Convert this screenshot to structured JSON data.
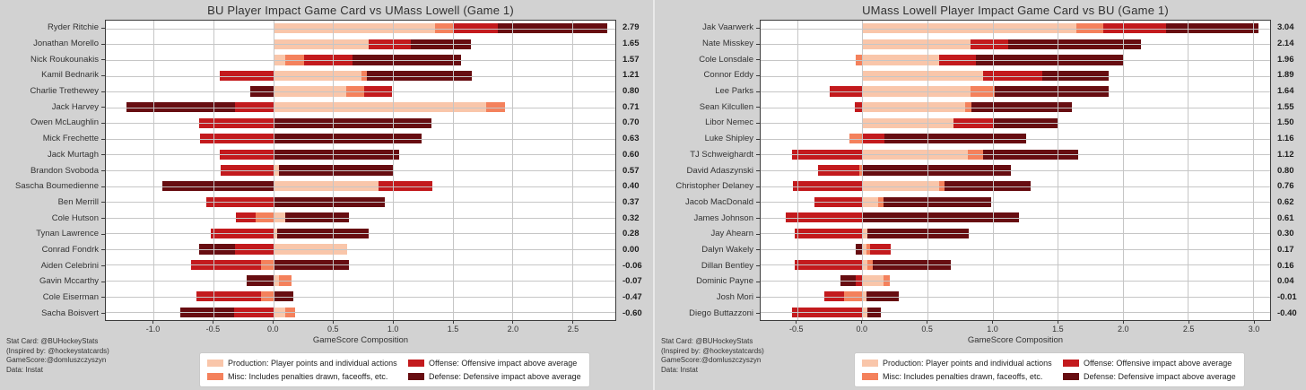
{
  "colors": {
    "background": "#d2d2d2",
    "plot_background": "#ffffff",
    "grid": "#c6c6c6",
    "spine": "#3b3b3b",
    "text": "#2f2f2f",
    "production": "#f9c6aa",
    "misc": "#f4815c",
    "offense": "#c31a1d",
    "defense": "#670d11"
  },
  "legend": {
    "items": [
      {
        "key": "production",
        "label": "Production: Player points and individual actions"
      },
      {
        "key": "misc",
        "label": "Misc: Includes penalties drawn, faceoffs, etc."
      },
      {
        "key": "offense",
        "label": "Offense: Offensive impact above average"
      },
      {
        "key": "defense",
        "label": "Defense: Defensive impact above average"
      }
    ]
  },
  "credits": [
    "Stat Card: @BUHockeyStats",
    "(Inspired by: @hockeystatcards)",
    "GameScore:@domluszczyszyn",
    "Data: Instat"
  ],
  "chart_data": [
    {
      "type": "bar",
      "orientation": "horizontal-stacked",
      "title": "BU Player Impact Game Card vs UMass Lowell (Game 1)",
      "xlabel": "GameScore Composition",
      "xlim": [
        -1.4,
        2.86
      ],
      "xticks": [
        "-1.0",
        "-0.5",
        "0.0",
        "0.5",
        "1.0",
        "1.5",
        "2.0",
        "2.5"
      ],
      "segment_order": [
        "production",
        "misc",
        "offense",
        "defense"
      ],
      "grid": true,
      "players": [
        {
          "name": "Ryder Ritchie",
          "total": "2.79",
          "production": 1.35,
          "misc": 0.15,
          "offense": 0.38,
          "defense": 0.91
        },
        {
          "name": "Jonathan Morello",
          "total": "1.65",
          "production": 0.8,
          "misc": 0.0,
          "offense": 0.35,
          "defense": 0.5
        },
        {
          "name": "Nick Roukounakis",
          "total": "1.57",
          "production": 0.1,
          "misc": 0.16,
          "offense": 0.4,
          "defense": 0.91
        },
        {
          "name": "Kamil Bednarik",
          "total": "1.21",
          "production": 0.74,
          "misc": 0.04,
          "offense": -0.45,
          "defense": 0.88
        },
        {
          "name": "Charlie Trethewey",
          "total": "0.80",
          "production": 0.61,
          "misc": 0.15,
          "offense": 0.23,
          "defense": -0.19
        },
        {
          "name": "Jack Harvey",
          "total": "0.71",
          "production": 1.78,
          "misc": 0.16,
          "offense": -0.32,
          "defense": -0.91
        },
        {
          "name": "Owen McLaughlin",
          "total": "0.70",
          "production": 0.0,
          "misc": 0.0,
          "offense": -0.62,
          "defense": 1.32
        },
        {
          "name": "Mick Frechette",
          "total": "0.63",
          "production": 0.0,
          "misc": 0.0,
          "offense": -0.61,
          "defense": 1.24
        },
        {
          "name": "Jack Murtagh",
          "total": "0.60",
          "production": 0.0,
          "misc": 0.0,
          "offense": -0.45,
          "defense": 1.05
        },
        {
          "name": "Brandon Svoboda",
          "total": "0.57",
          "production": 0.05,
          "misc": 0.0,
          "offense": -0.44,
          "defense": 0.96
        },
        {
          "name": "Sascha Boumedienne",
          "total": "0.40",
          "production": 0.88,
          "misc": 0.0,
          "offense": 0.45,
          "defense": -0.93
        },
        {
          "name": "Ben Merrill",
          "total": "0.37",
          "production": 0.0,
          "misc": 0.0,
          "offense": -0.56,
          "defense": 0.93
        },
        {
          "name": "Cole Hutson",
          "total": "0.32",
          "production": 0.1,
          "misc": -0.15,
          "offense": -0.16,
          "defense": 0.53
        },
        {
          "name": "Tynan Lawrence",
          "total": "0.28",
          "production": 0.03,
          "misc": 0.0,
          "offense": -0.52,
          "defense": 0.77
        },
        {
          "name": "Conrad Fondrk",
          "total": "0.00",
          "production": 0.62,
          "misc": 0.0,
          "offense": -0.32,
          "defense": -0.3
        },
        {
          "name": "Aiden Celebrini",
          "total": "-0.06",
          "production": 0.0,
          "misc": -0.1,
          "offense": -0.59,
          "defense": 0.63
        },
        {
          "name": "Gavin Mccarthy",
          "total": "-0.07",
          "production": 0.05,
          "misc": 0.1,
          "offense": 0.0,
          "defense": -0.22
        },
        {
          "name": "Cole Eiserman",
          "total": "-0.47",
          "production": 0.0,
          "misc": -0.1,
          "offense": -0.54,
          "defense": 0.17
        },
        {
          "name": "Sacha Boisvert",
          "total": "-0.60",
          "production": 0.1,
          "misc": 0.08,
          "offense": -0.33,
          "defense": -0.45
        }
      ]
    },
    {
      "type": "bar",
      "orientation": "horizontal-stacked",
      "title": "UMass Lowell Player Impact Game Card vs BU (Game 1)",
      "xlabel": "GameScore Composition",
      "xlim": [
        -0.78,
        3.13
      ],
      "xticks": [
        "-0.5",
        "0.0",
        "0.5",
        "1.0",
        "1.5",
        "2.0",
        "2.5",
        "3.0"
      ],
      "segment_order": [
        "production",
        "misc",
        "offense",
        "defense"
      ],
      "grid": true,
      "players": [
        {
          "name": "Jak Vaarwerk",
          "total": "3.04",
          "production": 1.64,
          "misc": 0.21,
          "offense": 0.48,
          "defense": 0.71
        },
        {
          "name": "Nate Misskey",
          "total": "2.14",
          "production": 0.83,
          "misc": 0.0,
          "offense": 0.29,
          "defense": 1.02
        },
        {
          "name": "Cole Lonsdale",
          "total": "1.96",
          "production": 0.59,
          "misc": -0.05,
          "offense": 0.28,
          "defense": 1.14
        },
        {
          "name": "Connor Eddy",
          "total": "1.89",
          "production": 0.93,
          "misc": 0.0,
          "offense": 0.45,
          "defense": 0.51
        },
        {
          "name": "Lee Parks",
          "total": "1.64",
          "production": 0.83,
          "misc": 0.19,
          "offense": -0.25,
          "defense": 0.87
        },
        {
          "name": "Sean Kilcullen",
          "total": "1.55",
          "production": 0.79,
          "misc": 0.05,
          "offense": -0.06,
          "defense": 0.77
        },
        {
          "name": "Libor Nemec",
          "total": "1.50",
          "production": 0.7,
          "misc": 0.0,
          "offense": 0.3,
          "defense": 0.5
        },
        {
          "name": "Luke Shipley",
          "total": "1.16",
          "production": 0.0,
          "misc": -0.1,
          "offense": 0.17,
          "defense": 1.09
        },
        {
          "name": "TJ Schweighardt",
          "total": "1.12",
          "production": 0.81,
          "misc": 0.12,
          "offense": -0.54,
          "defense": 0.73
        },
        {
          "name": "David Adaszynski",
          "total": "0.80",
          "production": 0.0,
          "misc": -0.02,
          "offense": -0.32,
          "defense": 1.14
        },
        {
          "name": "Christopher Delaney",
          "total": "0.76",
          "production": 0.59,
          "misc": 0.04,
          "offense": -0.53,
          "defense": 0.66
        },
        {
          "name": "Jacob MacDonald",
          "total": "0.62",
          "production": 0.12,
          "misc": 0.04,
          "offense": -0.37,
          "defense": 0.83
        },
        {
          "name": "James Johnson",
          "total": "0.61",
          "production": 0.0,
          "misc": 0.0,
          "offense": -0.59,
          "defense": 1.2
        },
        {
          "name": "Jay Ahearn",
          "total": "0.30",
          "production": 0.04,
          "misc": 0.0,
          "offense": -0.52,
          "defense": 0.78
        },
        {
          "name": "Dalyn Wakely",
          "total": "0.17",
          "production": 0.03,
          "misc": 0.03,
          "offense": 0.16,
          "defense": -0.05
        },
        {
          "name": "Dillan Bentley",
          "total": "0.16",
          "production": 0.04,
          "misc": 0.04,
          "offense": -0.52,
          "defense": 0.6
        },
        {
          "name": "Dominic Payne",
          "total": "0.04",
          "production": 0.16,
          "misc": 0.05,
          "offense": -0.05,
          "defense": -0.12
        },
        {
          "name": "Josh Mori",
          "total": "-0.01",
          "production": 0.03,
          "misc": -0.14,
          "offense": -0.15,
          "defense": 0.25
        },
        {
          "name": "Diego Buttazzoni",
          "total": "-0.40",
          "production": 0.04,
          "misc": 0.0,
          "offense": -0.54,
          "defense": 0.1
        }
      ]
    }
  ]
}
